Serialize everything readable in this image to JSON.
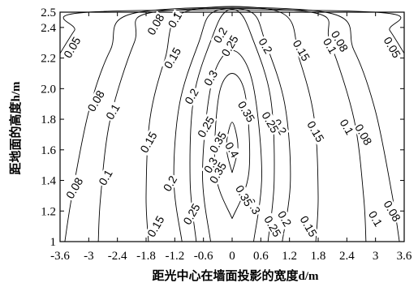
{
  "chart_data": {
    "type": "contour",
    "title": "",
    "xlabel": "距光中心在墙面投影的宽度d/m",
    "ylabel": "距地面的高度h/m",
    "xlim": [
      -3.6,
      3.6
    ],
    "ylim": [
      1.0,
      2.5
    ],
    "x_ticks": [
      "-3.6",
      "-3",
      "-2.4",
      "-1.8",
      "-1.2",
      "-0.6",
      "0",
      "0.6",
      "1.2",
      "1.8",
      "2.4",
      "3",
      "3.6"
    ],
    "y_ticks": [
      "1",
      "1.2",
      "1.4",
      "1.6",
      "1.8",
      "2.0",
      "2.2",
      "2.4",
      "2.5"
    ],
    "grid": false,
    "levels": [
      0.05,
      0.08,
      0.1,
      0.15,
      0.2,
      0.25,
      0.3,
      0.35,
      0.4
    ],
    "contours": [
      {
        "level": 0.05,
        "label": "0.05",
        "points": [
          [
            -3.6,
            2.23
          ],
          [
            -3.3,
            2.38
          ],
          [
            -3.0,
            2.5
          ]
        ],
        "mirror": true,
        "labels": [
          [
            -3.35,
            2.27
          ]
        ]
      },
      {
        "level": 0.08,
        "label": "0.08",
        "points": [
          [
            -3.5,
            1.0
          ],
          [
            -3.35,
            1.3
          ],
          [
            -3.0,
            1.85
          ],
          [
            -2.55,
            2.25
          ],
          [
            -1.95,
            2.5
          ]
        ],
        "mirror": true,
        "labels": [
          [
            -3.3,
            1.35
          ],
          [
            -2.85,
            1.92
          ],
          [
            -1.6,
            2.42
          ]
        ]
      },
      {
        "level": 0.1,
        "label": "0.1",
        "points": [
          [
            -2.8,
            1.0
          ],
          [
            -2.75,
            1.3
          ],
          [
            -2.55,
            1.8
          ],
          [
            -2.05,
            2.3
          ],
          [
            -1.65,
            2.5
          ]
        ],
        "mirror": true,
        "labels": [
          [
            -2.65,
            1.42
          ],
          [
            -2.5,
            1.85
          ],
          [
            -1.2,
            2.45
          ]
        ]
      },
      {
        "level": 0.15,
        "label": "0.15",
        "points": [
          [
            -1.75,
            1.0
          ],
          [
            -1.8,
            1.3
          ],
          [
            -1.72,
            1.8
          ],
          [
            -1.4,
            2.2
          ],
          [
            -1.0,
            2.5
          ]
        ],
        "mirror": true,
        "labels": [
          [
            -1.6,
            1.1
          ],
          [
            -1.75,
            1.65
          ],
          [
            -1.25,
            2.2
          ]
        ]
      },
      {
        "level": 0.2,
        "label": "0.2",
        "points": [
          [
            -1.05,
            1.0
          ],
          [
            -1.22,
            1.4
          ],
          [
            -1.1,
            1.9
          ],
          [
            -0.7,
            2.3
          ],
          [
            -0.4,
            2.5
          ]
        ],
        "mirror": true,
        "labels": [
          [
            -1.3,
            1.38
          ],
          [
            -0.85,
            1.95
          ],
          [
            -0.25,
            2.35
          ]
        ]
      },
      {
        "level": 0.25,
        "label": "0.25",
        "points": [
          [
            -0.75,
            1.0
          ],
          [
            -0.88,
            1.4
          ],
          [
            -0.8,
            1.95
          ],
          [
            -0.4,
            2.35
          ],
          [
            -0.15,
            2.5
          ]
        ],
        "mirror": true,
        "labels": [
          [
            -0.85,
            1.18
          ],
          [
            -0.55,
            1.75
          ],
          [
            -0.05,
            2.28
          ]
        ]
      },
      {
        "level": 0.3,
        "label": "0.3",
        "points": [
          [
            -0.45,
            1.0
          ],
          [
            -0.62,
            1.45
          ],
          [
            -0.42,
            2.05
          ],
          [
            0.0,
            2.25
          ]
        ],
        "mirror": true,
        "labels": [
          [
            -0.45,
            2.07
          ],
          [
            -0.45,
            1.5
          ],
          [
            0.45,
            1.23
          ]
        ]
      },
      {
        "level": 0.35,
        "label": "0.35",
        "points": [
          [
            0.0,
            1.15
          ],
          [
            -0.35,
            1.45
          ],
          [
            -0.28,
            1.95
          ],
          [
            0.0,
            2.1
          ]
        ],
        "mirror": true,
        "labels": [
          [
            -0.3,
            1.65
          ],
          [
            -0.3,
            1.45
          ],
          [
            0.3,
            1.85
          ],
          [
            0.25,
            1.3
          ]
        ]
      },
      {
        "level": 0.4,
        "label": "0.4",
        "points": [
          [
            0.0,
            1.45
          ],
          [
            -0.12,
            1.62
          ],
          [
            0.0,
            1.78
          ]
        ],
        "mirror": true,
        "labels": [
          [
            0.0,
            1.6
          ]
        ]
      }
    ],
    "right_labels": [
      {
        "text": "0.05",
        "at": [
          3.35,
          2.27
        ]
      },
      {
        "text": "0.08",
        "at": [
          2.25,
          2.31
        ]
      },
      {
        "text": "0.1",
        "at": [
          2.05,
          2.28
        ]
      },
      {
        "text": "0.15",
        "at": [
          1.45,
          2.25
        ]
      },
      {
        "text": "0.2",
        "at": [
          0.7,
          2.28
        ]
      },
      {
        "text": "0.08",
        "at": [
          3.35,
          1.2
        ]
      },
      {
        "text": "0.1",
        "at": [
          3.0,
          1.15
        ]
      },
      {
        "text": "0.15",
        "at": [
          1.6,
          1.1
        ]
      },
      {
        "text": "0.2",
        "at": [
          1.1,
          1.15
        ]
      },
      {
        "text": "0.25",
        "at": [
          0.85,
          1.1
        ]
      },
      {
        "text": "0.08",
        "at": [
          2.75,
          1.7
        ]
      },
      {
        "text": "0.1",
        "at": [
          2.4,
          1.75
        ]
      },
      {
        "text": "0.15",
        "at": [
          1.75,
          1.72
        ]
      },
      {
        "text": "0.2",
        "at": [
          1.0,
          1.75
        ]
      },
      {
        "text": "0.25",
        "at": [
          0.8,
          1.78
        ]
      }
    ]
  }
}
